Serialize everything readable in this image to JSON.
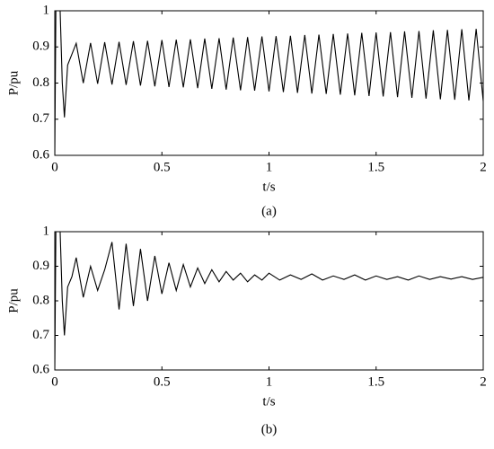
{
  "chart_data": [
    {
      "type": "line",
      "caption": "(a)",
      "xlabel": "t/s",
      "ylabel": "P/pu",
      "xlim": [
        0,
        2
      ],
      "xticks": [
        0,
        0.5,
        1,
        1.5,
        2
      ],
      "ylim": [
        0.6,
        1
      ],
      "yticks": [
        0.6,
        0.7,
        0.8,
        0.9,
        1
      ],
      "box": true,
      "series": [
        {
          "color": "#000000",
          "x": [
            0,
            0.005,
            0.025,
            0.035,
            0.045,
            0.06,
            0.08,
            0.1,
            0.133,
            0.167,
            0.2,
            0.233,
            0.267,
            0.3,
            0.333,
            0.367,
            0.4,
            0.433,
            0.467,
            0.5,
            0.533,
            0.567,
            0.6,
            0.633,
            0.667,
            0.7,
            0.733,
            0.767,
            0.8,
            0.833,
            0.867,
            0.9,
            0.933,
            0.967,
            1.0,
            1.033,
            1.067,
            1.1,
            1.133,
            1.167,
            1.2,
            1.233,
            1.267,
            1.3,
            1.333,
            1.367,
            1.4,
            1.433,
            1.467,
            1.5,
            1.533,
            1.567,
            1.6,
            1.633,
            1.667,
            1.7,
            1.733,
            1.767,
            1.8,
            1.833,
            1.867,
            1.9,
            1.933,
            1.967,
            2.0
          ],
          "values": [
            0.6,
            1,
            1,
            0.8,
            0.705,
            0.85,
            0.88,
            0.91,
            0.8,
            0.911,
            0.798,
            0.913,
            0.796,
            0.914,
            0.795,
            0.916,
            0.793,
            0.917,
            0.791,
            0.919,
            0.789,
            0.92,
            0.788,
            0.921,
            0.786,
            0.923,
            0.784,
            0.924,
            0.782,
            0.926,
            0.78,
            0.927,
            0.779,
            0.929,
            0.777,
            0.93,
            0.775,
            0.931,
            0.773,
            0.933,
            0.771,
            0.934,
            0.77,
            0.936,
            0.768,
            0.937,
            0.766,
            0.939,
            0.764,
            0.94,
            0.763,
            0.941,
            0.761,
            0.943,
            0.759,
            0.944,
            0.757,
            0.946,
            0.755,
            0.947,
            0.754,
            0.949,
            0.752,
            0.95,
            0.75
          ]
        }
      ]
    },
    {
      "type": "line",
      "caption": "(b)",
      "xlabel": "t/s",
      "ylabel": "P/pu",
      "xlim": [
        0,
        2
      ],
      "xticks": [
        0,
        0.5,
        1,
        1.5,
        2
      ],
      "ylim": [
        0.6,
        1
      ],
      "yticks": [
        0.6,
        0.7,
        0.8,
        0.9,
        1
      ],
      "box": true,
      "series": [
        {
          "color": "#000000",
          "x": [
            0,
            0.005,
            0.025,
            0.035,
            0.045,
            0.06,
            0.08,
            0.1,
            0.133,
            0.167,
            0.2,
            0.233,
            0.267,
            0.3,
            0.333,
            0.367,
            0.4,
            0.433,
            0.467,
            0.5,
            0.533,
            0.567,
            0.6,
            0.633,
            0.667,
            0.7,
            0.733,
            0.767,
            0.8,
            0.833,
            0.867,
            0.9,
            0.933,
            0.967,
            1.0,
            1.05,
            1.1,
            1.15,
            1.2,
            1.25,
            1.3,
            1.35,
            1.4,
            1.45,
            1.5,
            1.55,
            1.6,
            1.65,
            1.7,
            1.75,
            1.8,
            1.85,
            1.9,
            1.95,
            2.0
          ],
          "values": [
            0.6,
            1,
            1,
            0.8,
            0.7,
            0.84,
            0.87,
            0.925,
            0.81,
            0.9,
            0.83,
            0.89,
            0.97,
            0.775,
            0.965,
            0.785,
            0.95,
            0.8,
            0.93,
            0.82,
            0.91,
            0.83,
            0.905,
            0.84,
            0.895,
            0.85,
            0.89,
            0.855,
            0.885,
            0.86,
            0.88,
            0.855,
            0.875,
            0.86,
            0.88,
            0.86,
            0.875,
            0.862,
            0.878,
            0.86,
            0.872,
            0.862,
            0.875,
            0.86,
            0.872,
            0.862,
            0.87,
            0.86,
            0.872,
            0.862,
            0.87,
            0.863,
            0.87,
            0.862,
            0.868
          ]
        }
      ]
    }
  ]
}
